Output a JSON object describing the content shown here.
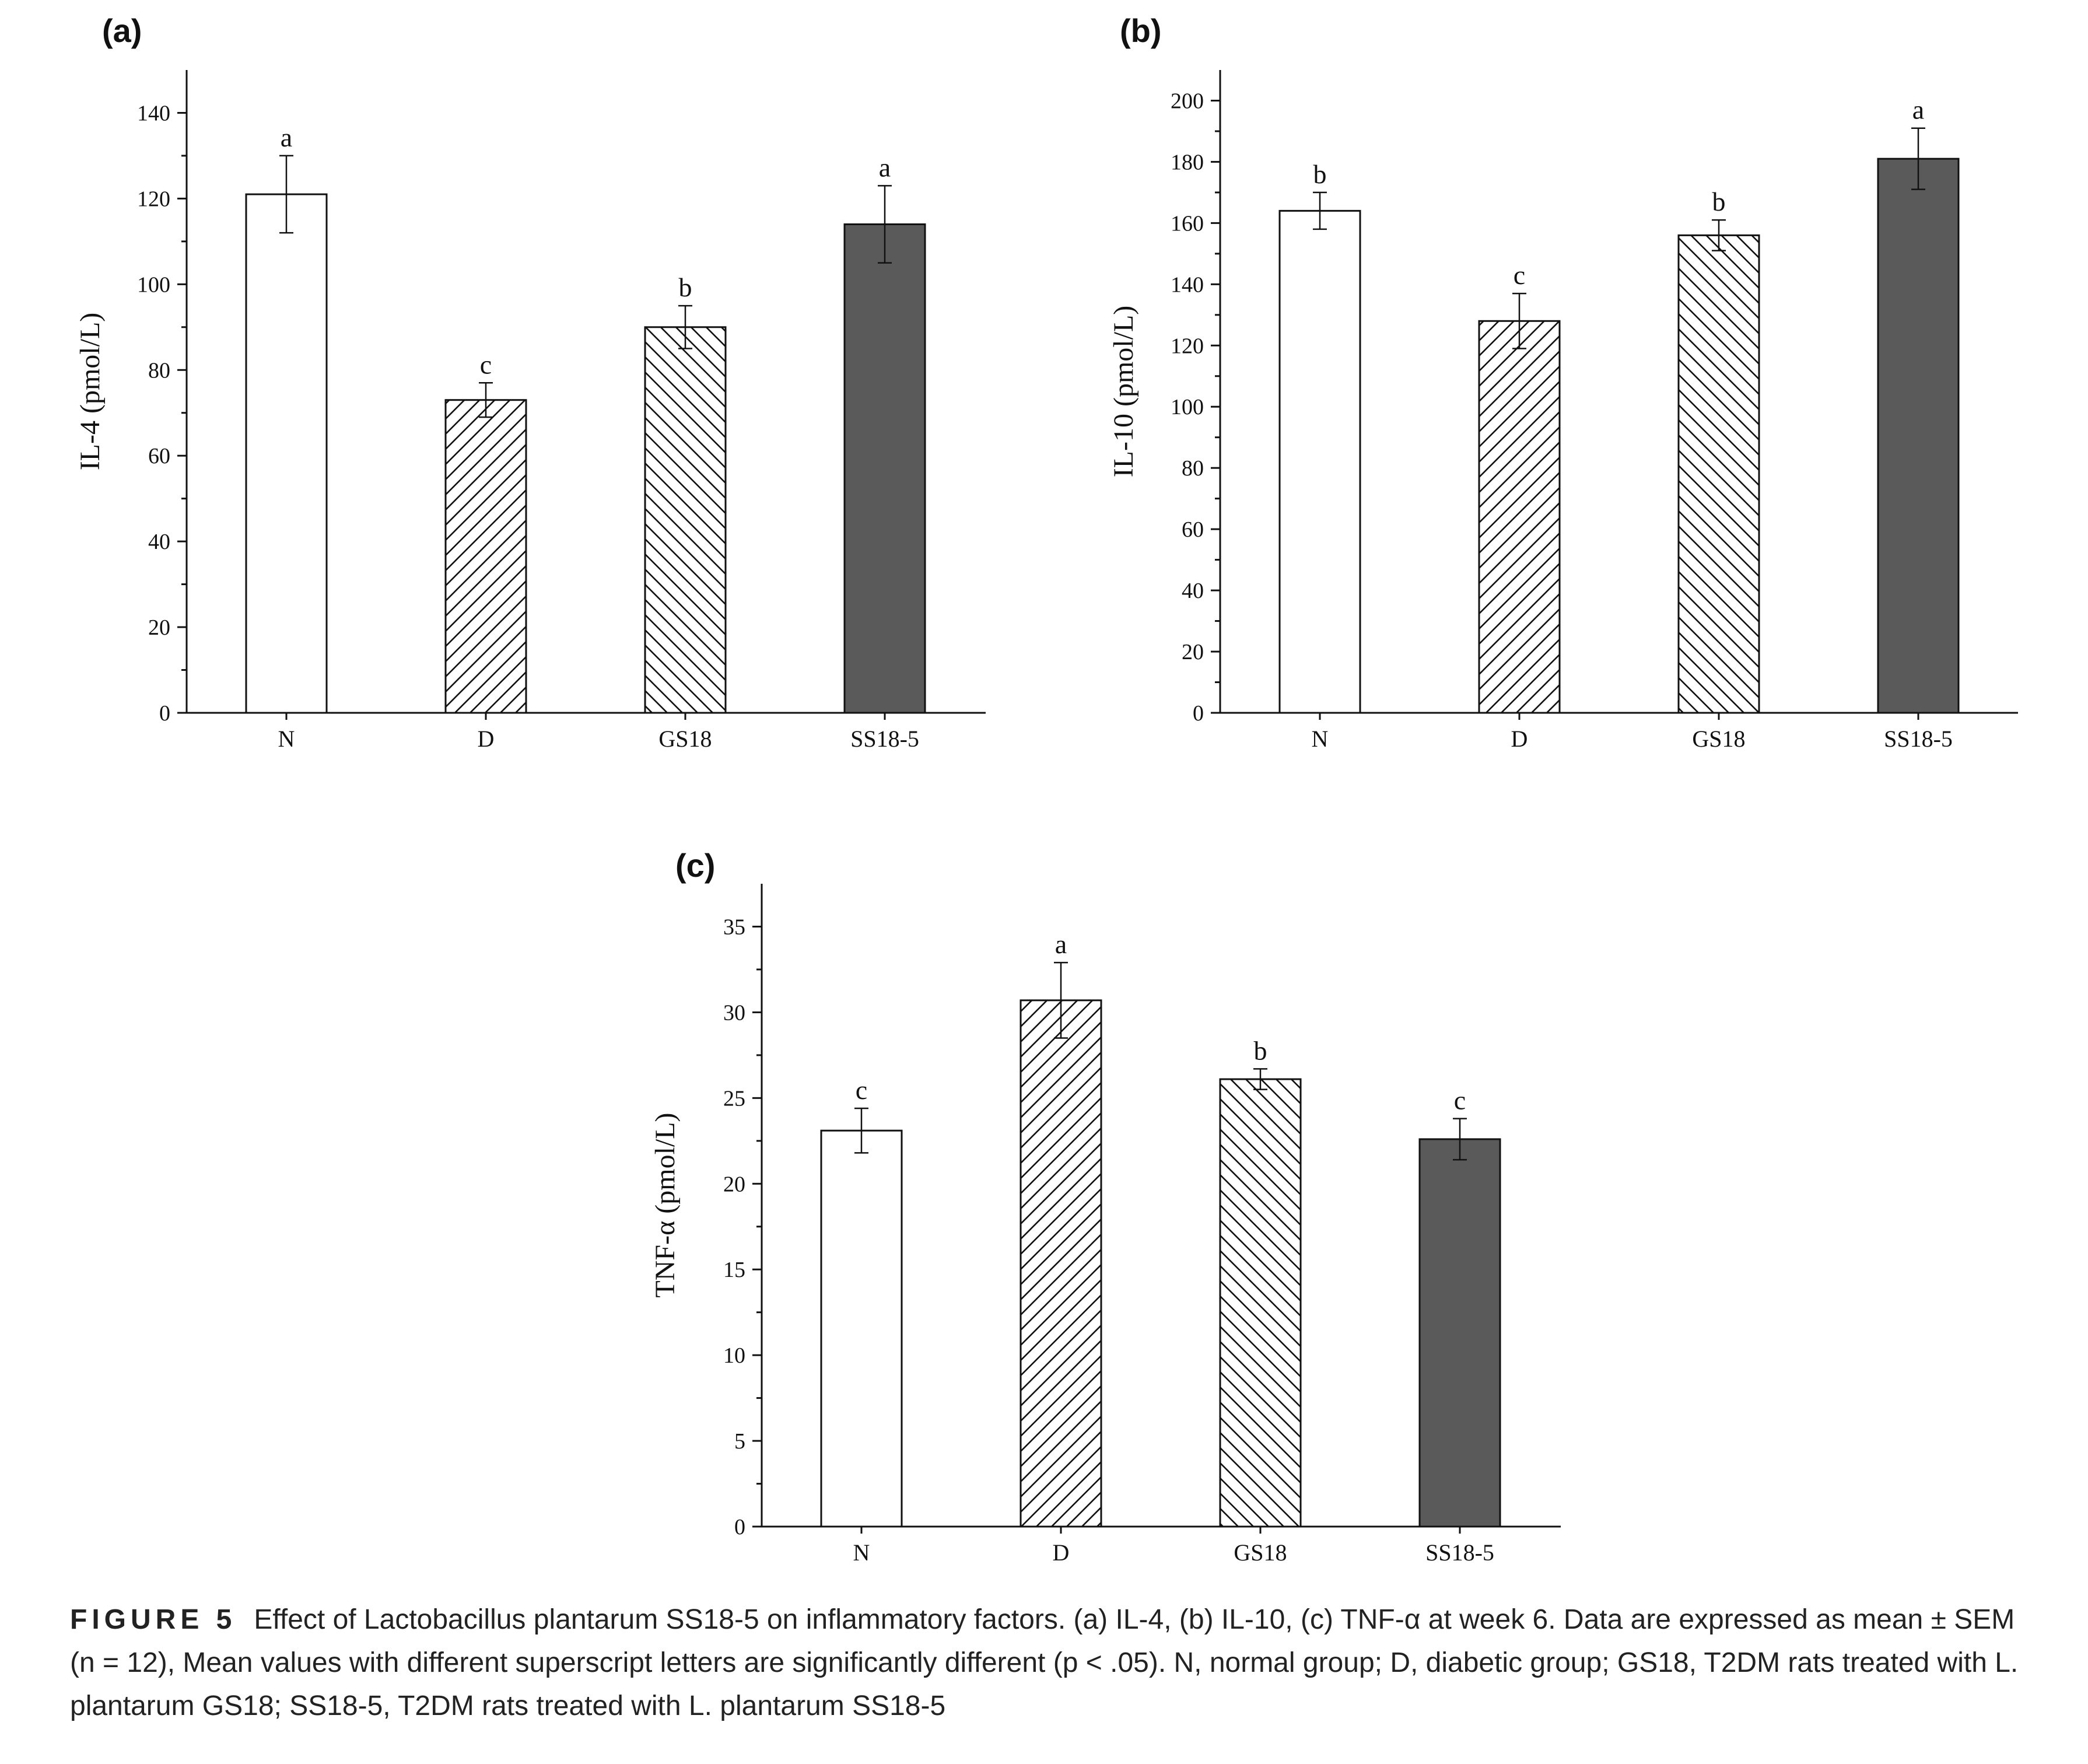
{
  "caption": {
    "label": "FIGURE 5",
    "text": "Effect of Lactobacillus plantarum SS18-5 on inflammatory factors. (a) IL-4, (b) IL-10, (c) TNF-α at week 6. Data are expressed as mean ± SEM (n = 12), Mean values with different superscript letters are significantly different (p < .05). N, normal group; D, diabetic group; GS18, T2DM rats treated with L. plantarum GS18; SS18-5, T2DM rats treated with L. plantarum SS18-5"
  },
  "colors": {
    "open": "#ffffff",
    "solid": "#5a5a5a",
    "ink": "#111111"
  },
  "chart_data": [
    {
      "panel": "(a)",
      "type": "bar",
      "ylabel": "IL-4 (pmol/L)",
      "xlabel": "",
      "ylim": [
        0,
        150
      ],
      "yticks": [
        0,
        20,
        40,
        60,
        80,
        100,
        120,
        140
      ],
      "categories": [
        "N",
        "D",
        "GS18",
        "SS18-5"
      ],
      "values": [
        121,
        73,
        90,
        114
      ],
      "errors": [
        9,
        4,
        5,
        9
      ],
      "letters": [
        "a",
        "c",
        "b",
        "a"
      ],
      "fills": [
        "open",
        "hatch-forward",
        "hatch-back",
        "solid"
      ]
    },
    {
      "panel": "(b)",
      "type": "bar",
      "ylabel": "IL-10 (pmol/L)",
      "xlabel": "",
      "ylim": [
        0,
        210
      ],
      "yticks": [
        0,
        20,
        40,
        60,
        80,
        100,
        120,
        140,
        160,
        180,
        200
      ],
      "categories": [
        "N",
        "D",
        "GS18",
        "SS18-5"
      ],
      "values": [
        164,
        128,
        156,
        181
      ],
      "errors": [
        6,
        9,
        5,
        10
      ],
      "letters": [
        "b",
        "c",
        "b",
        "a"
      ],
      "fills": [
        "open",
        "hatch-forward",
        "hatch-back",
        "solid"
      ]
    },
    {
      "panel": "(c)",
      "type": "bar",
      "ylabel": "TNF-α (pmol/L)",
      "xlabel": "",
      "ylim": [
        0,
        37.5
      ],
      "yticks": [
        0,
        5,
        10,
        15,
        20,
        25,
        30,
        35
      ],
      "categories": [
        "N",
        "D",
        "GS18",
        "SS18-5"
      ],
      "values": [
        23.1,
        30.7,
        26.1,
        22.6
      ],
      "errors": [
        1.3,
        2.2,
        0.6,
        1.2
      ],
      "letters": [
        "c",
        "a",
        "b",
        "c"
      ],
      "fills": [
        "open",
        "hatch-forward",
        "hatch-back",
        "solid"
      ]
    }
  ]
}
